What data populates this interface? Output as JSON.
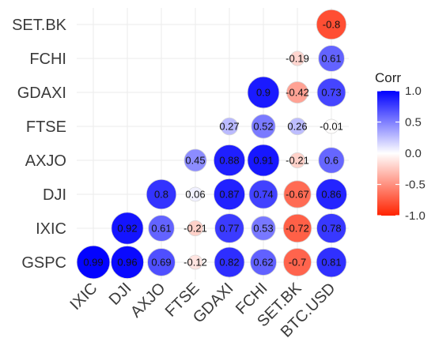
{
  "chart_data": {
    "type": "heatmap",
    "title": "",
    "xlabel": "",
    "ylabel": "",
    "x_labels": [
      "IXIC",
      "DJI",
      "AXJO",
      "FTSE",
      "GDAXI",
      "FCHI",
      "SET.BK",
      "BTC.USD"
    ],
    "y_labels": [
      "SET.BK",
      "FCHI",
      "GDAXI",
      "FTSE",
      "AXJO",
      "DJI",
      "IXIC",
      "GSPC"
    ],
    "cells": [
      {
        "x": "BTC.USD",
        "y": "SET.BK",
        "value": -0.8,
        "label": "-0.8"
      },
      {
        "x": "SET.BK",
        "y": "FCHI",
        "value": -0.19,
        "label": "-0.19"
      },
      {
        "x": "BTC.USD",
        "y": "FCHI",
        "value": 0.61,
        "label": "0.61"
      },
      {
        "x": "FCHI",
        "y": "GDAXI",
        "value": 0.9,
        "label": "0.9"
      },
      {
        "x": "SET.BK",
        "y": "GDAXI",
        "value": -0.42,
        "label": "-0.42"
      },
      {
        "x": "BTC.USD",
        "y": "GDAXI",
        "value": 0.73,
        "label": "0.73"
      },
      {
        "x": "GDAXI",
        "y": "FTSE",
        "value": 0.27,
        "label": "0.27"
      },
      {
        "x": "FCHI",
        "y": "FTSE",
        "value": 0.52,
        "label": "0.52"
      },
      {
        "x": "SET.BK",
        "y": "FTSE",
        "value": 0.26,
        "label": "0.26"
      },
      {
        "x": "BTC.USD",
        "y": "FTSE",
        "value": -0.01,
        "label": "-0.01"
      },
      {
        "x": "FTSE",
        "y": "AXJO",
        "value": 0.45,
        "label": "0.45"
      },
      {
        "x": "GDAXI",
        "y": "AXJO",
        "value": 0.88,
        "label": "0.88"
      },
      {
        "x": "FCHI",
        "y": "AXJO",
        "value": 0.91,
        "label": "0.91"
      },
      {
        "x": "SET.BK",
        "y": "AXJO",
        "value": -0.21,
        "label": "-0.21"
      },
      {
        "x": "BTC.USD",
        "y": "AXJO",
        "value": 0.6,
        "label": "0.6"
      },
      {
        "x": "AXJO",
        "y": "DJI",
        "value": 0.8,
        "label": "0.8"
      },
      {
        "x": "FTSE",
        "y": "DJI",
        "value": 0.06,
        "label": "0.06"
      },
      {
        "x": "GDAXI",
        "y": "DJI",
        "value": 0.87,
        "label": "0.87"
      },
      {
        "x": "FCHI",
        "y": "DJI",
        "value": 0.74,
        "label": "0.74"
      },
      {
        "x": "SET.BK",
        "y": "DJI",
        "value": -0.67,
        "label": "-0.67"
      },
      {
        "x": "BTC.USD",
        "y": "DJI",
        "value": 0.86,
        "label": "0.86"
      },
      {
        "x": "DJI",
        "y": "IXIC",
        "value": 0.92,
        "label": "0.92"
      },
      {
        "x": "AXJO",
        "y": "IXIC",
        "value": 0.61,
        "label": "0.61"
      },
      {
        "x": "FTSE",
        "y": "IXIC",
        "value": -0.21,
        "label": "-0.21"
      },
      {
        "x": "GDAXI",
        "y": "IXIC",
        "value": 0.77,
        "label": "0.77"
      },
      {
        "x": "FCHI",
        "y": "IXIC",
        "value": 0.53,
        "label": "0.53"
      },
      {
        "x": "SET.BK",
        "y": "IXIC",
        "value": -0.72,
        "label": "-0.72"
      },
      {
        "x": "BTC.USD",
        "y": "IXIC",
        "value": 0.78,
        "label": "0.78"
      },
      {
        "x": "IXIC",
        "y": "GSPC",
        "value": 0.99,
        "label": "0.99"
      },
      {
        "x": "DJI",
        "y": "GSPC",
        "value": 0.96,
        "label": "0.96"
      },
      {
        "x": "AXJO",
        "y": "GSPC",
        "value": 0.69,
        "label": "0.69"
      },
      {
        "x": "FTSE",
        "y": "GSPC",
        "value": -0.12,
        "label": "-0.12"
      },
      {
        "x": "GDAXI",
        "y": "GSPC",
        "value": 0.82,
        "label": "0.82"
      },
      {
        "x": "FCHI",
        "y": "GSPC",
        "value": 0.62,
        "label": "0.62"
      },
      {
        "x": "SET.BK",
        "y": "GSPC",
        "value": -0.7,
        "label": "-0.7"
      },
      {
        "x": "BTC.USD",
        "y": "GSPC",
        "value": 0.81,
        "label": "0.81"
      }
    ],
    "legend": {
      "title": "Corr",
      "placement": "right",
      "range": [
        -1,
        1
      ],
      "ticks": [
        "1.0",
        "0.5",
        "0.0",
        "-0.5",
        "-1.0"
      ],
      "colors": {
        "high": "#0000ff",
        "mid": "#ffffff",
        "low": "#ff2200"
      }
    },
    "grid": true
  }
}
